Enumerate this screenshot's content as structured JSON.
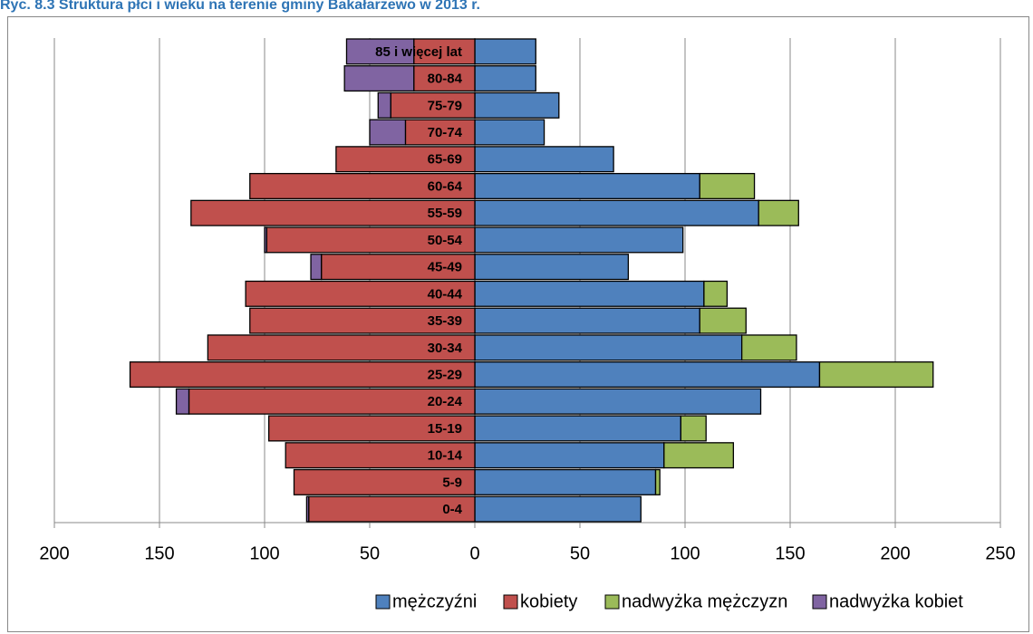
{
  "chart_data": {
    "type": "pyramid",
    "title": "Ryc. 8.3 Struktura płci i wieku na terenie gminy Bakałarzewo w 2013 r.",
    "categories": [
      "0-4",
      "5-9",
      "10-14",
      "15-19",
      "20-24",
      "25-29",
      "30-34",
      "35-39",
      "40-44",
      "45-49",
      "50-54",
      "55-59",
      "60-64",
      "65-69",
      "70-74",
      "75-79",
      "80-84",
      "85 i więcej lat"
    ],
    "series": [
      {
        "name": "mężczyźni",
        "color": "#4f81bd",
        "values": [
          79,
          86,
          90,
          98,
          136,
          164,
          127,
          107,
          109,
          73,
          99,
          135,
          107,
          66,
          33,
          40,
          29,
          29
        ]
      },
      {
        "name": "kobiety",
        "color": "#c0504d",
        "values": [
          -79,
          -86,
          -90,
          -98,
          -136,
          -164,
          -127,
          -107,
          -109,
          -73,
          -99,
          -135,
          -107,
          -66,
          -33,
          -40,
          -29,
          -29
        ]
      },
      {
        "name": "nadwyżka mężczyzn",
        "color": "#9bbb59",
        "values": [
          0,
          2,
          33,
          12,
          0,
          54,
          26,
          22,
          11,
          0,
          0,
          19,
          26,
          0,
          0,
          0,
          0,
          0
        ]
      },
      {
        "name": "nadwyżka kobiet",
        "color": "#8064a2",
        "values": [
          -1,
          0,
          0,
          0,
          -6,
          0,
          0,
          0,
          0,
          -5,
          -1,
          0,
          0,
          0,
          -17,
          -6,
          -33,
          -32
        ]
      }
    ],
    "xlim": [
      -200,
      250
    ],
    "xticks": [
      {
        "value": -200,
        "label": "200"
      },
      {
        "value": -150,
        "label": "150"
      },
      {
        "value": -100,
        "label": "100"
      },
      {
        "value": -50,
        "label": "50"
      },
      0,
      50,
      100,
      150,
      200,
      250
    ],
    "grid": true,
    "legend": "bottom"
  }
}
